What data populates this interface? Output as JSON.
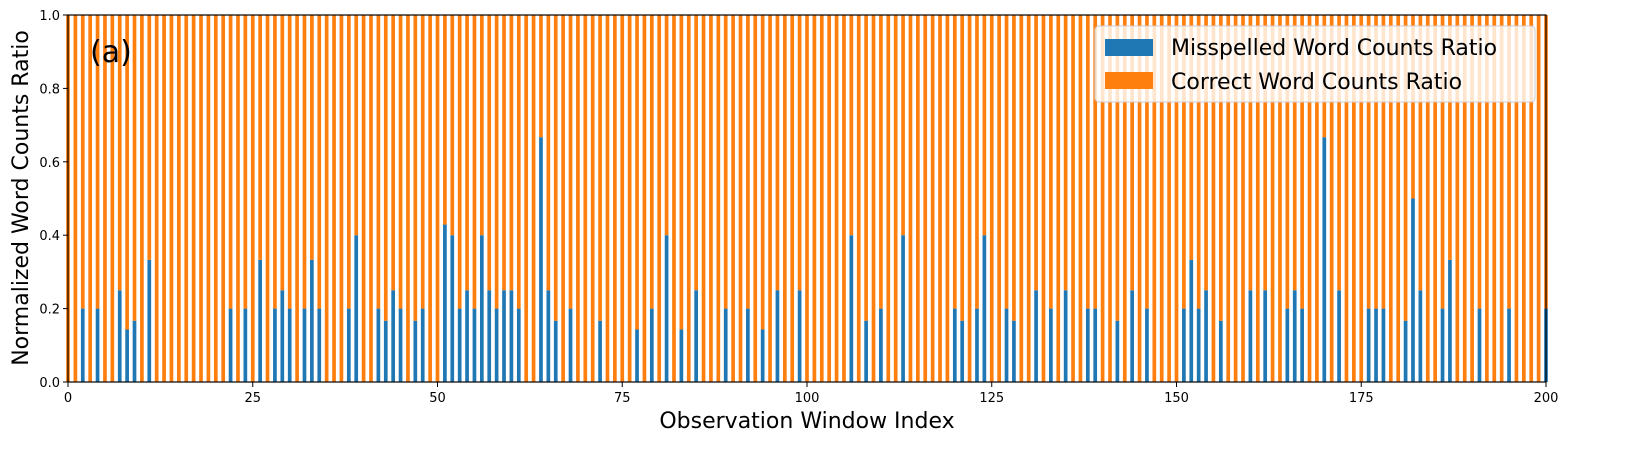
{
  "chart_data": {
    "type": "bar",
    "stacked": true,
    "annotation": "(a)",
    "xlabel": "Observation Window Index",
    "ylabel": "Normalized Word Counts Ratio",
    "xlim": [
      0,
      200
    ],
    "ylim": [
      0,
      1
    ],
    "xticks": [
      0,
      25,
      50,
      75,
      100,
      125,
      150,
      175,
      200
    ],
    "yticks": [
      "0.0",
      "0.2",
      "0.4",
      "0.6",
      "0.8",
      "1.0"
    ],
    "grid": false,
    "legend_position": "top-right",
    "series": [
      {
        "name": "Misspelled Word Counts Ratio",
        "color": "#1f77b4"
      },
      {
        "name": "Correct Word Counts Ratio",
        "color": "#ff7f0e"
      }
    ],
    "x_count": 201,
    "misspelled_nonzero": {
      "2": 0.2,
      "4": 0.2,
      "7": 0.25,
      "8": 0.143,
      "9": 0.167,
      "11": 0.333,
      "22": 0.2,
      "24": 0.2,
      "26": 0.333,
      "28": 0.2,
      "29": 0.25,
      "30": 0.2,
      "32": 0.2,
      "33": 0.333,
      "34": 0.2,
      "38": 0.2,
      "39": 0.4,
      "42": 0.2,
      "43": 0.167,
      "44": 0.25,
      "45": 0.2,
      "47": 0.167,
      "48": 0.2,
      "51": 0.429,
      "52": 0.4,
      "53": 0.2,
      "54": 0.25,
      "55": 0.2,
      "56": 0.4,
      "57": 0.25,
      "58": 0.2,
      "59": 0.25,
      "60": 0.25,
      "61": 0.2,
      "64": 0.667,
      "65": 0.25,
      "66": 0.167,
      "68": 0.2,
      "72": 0.167,
      "77": 0.143,
      "79": 0.2,
      "81": 0.4,
      "83": 0.143,
      "85": 0.25,
      "89": 0.2,
      "92": 0.2,
      "94": 0.143,
      "96": 0.25,
      "99": 0.25,
      "106": 0.4,
      "108": 0.167,
      "110": 0.2,
      "113": 0.4,
      "120": 0.2,
      "121": 0.167,
      "123": 0.2,
      "124": 0.4,
      "127": 0.2,
      "128": 0.167,
      "131": 0.25,
      "133": 0.2,
      "135": 0.25,
      "138": 0.2,
      "139": 0.2,
      "142": 0.167,
      "144": 0.25,
      "146": 0.2,
      "151": 0.2,
      "152": 0.333,
      "153": 0.2,
      "154": 0.25,
      "156": 0.167,
      "160": 0.25,
      "162": 0.25,
      "165": 0.2,
      "166": 0.25,
      "167": 0.2,
      "170": 0.667,
      "172": 0.25,
      "176": 0.2,
      "177": 0.2,
      "178": 0.2,
      "181": 0.167,
      "182": 0.5,
      "183": 0.25,
      "186": 0.2,
      "187": 0.333,
      "191": 0.2,
      "195": 0.2,
      "200": 0.2
    },
    "correct_note_is_complement": true
  }
}
